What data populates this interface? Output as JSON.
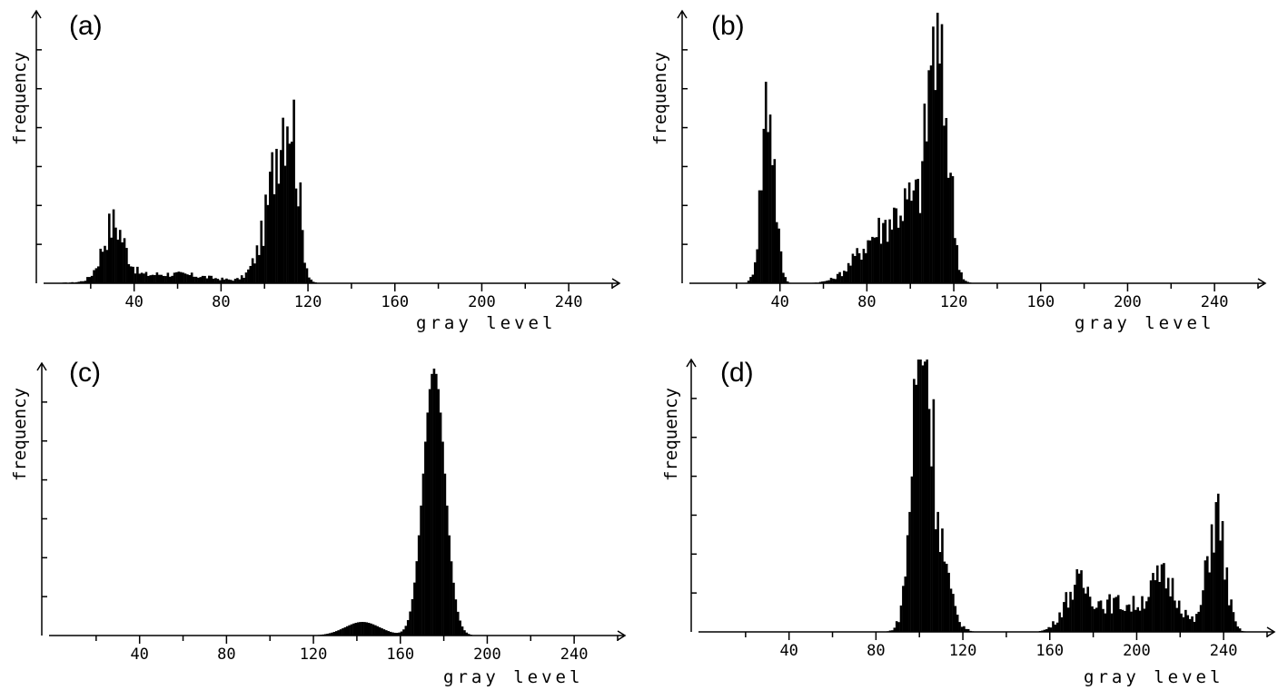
{
  "chart_data": [
    {
      "type": "bar",
      "panel_label": "(a)",
      "xlabel": "gray level",
      "ylabel": "frequency",
      "xticks": [
        40,
        80,
        120,
        160,
        200,
        240
      ],
      "xlim": [
        0,
        255
      ],
      "ylim": [
        0,
        1
      ],
      "peaks": [
        {
          "center": 30,
          "height": 0.24,
          "width": 5
        },
        {
          "center": 55,
          "height": 0.04,
          "width": 20
        },
        {
          "center": 108,
          "height": 0.47,
          "width": 4
        },
        {
          "center": 113,
          "height": 0.4,
          "width": 3
        },
        {
          "center": 103,
          "height": 0.25,
          "width": 6
        }
      ],
      "spiky": true
    },
    {
      "type": "bar",
      "panel_label": "(b)",
      "xlabel": "gray level",
      "ylabel": "frequency",
      "xticks": [
        40,
        80,
        120,
        160,
        200,
        240
      ],
      "xlim": [
        0,
        255
      ],
      "ylim": [
        0,
        1
      ],
      "peaks": [
        {
          "center": 34,
          "height": 0.82,
          "width": 3
        },
        {
          "center": 85,
          "height": 0.2,
          "width": 10
        },
        {
          "center": 102,
          "height": 0.3,
          "width": 8
        },
        {
          "center": 110,
          "height": 0.75,
          "width": 3
        },
        {
          "center": 116,
          "height": 0.55,
          "width": 3
        }
      ],
      "spiky": true
    },
    {
      "type": "bar",
      "panel_label": "(c)",
      "xlabel": "gray level",
      "ylabel": "frequency",
      "xticks": [
        40,
        80,
        120,
        160,
        200,
        240
      ],
      "xlim": [
        0,
        255
      ],
      "ylim": [
        0,
        1
      ],
      "peaks": [
        {
          "center": 142,
          "height": 0.05,
          "width": 8
        },
        {
          "center": 175,
          "height": 0.98,
          "width": 5
        }
      ],
      "spiky": false
    },
    {
      "type": "bar",
      "panel_label": "(d)",
      "xlabel": "gray level",
      "ylabel": "frequency",
      "xticks": [
        40,
        80,
        120,
        160,
        200,
        240
      ],
      "xlim": [
        0,
        255
      ],
      "ylim": [
        0,
        1
      ],
      "peaks": [
        {
          "center": 100,
          "height": 0.95,
          "width": 4
        },
        {
          "center": 105,
          "height": 0.5,
          "width": 6
        },
        {
          "center": 172,
          "height": 0.18,
          "width": 6
        },
        {
          "center": 190,
          "height": 0.12,
          "width": 10
        },
        {
          "center": 212,
          "height": 0.22,
          "width": 7
        },
        {
          "center": 236,
          "height": 0.5,
          "width": 4
        }
      ],
      "spiky": true
    }
  ]
}
